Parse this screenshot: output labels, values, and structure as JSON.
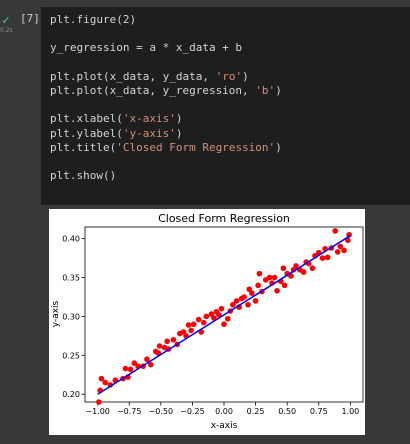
{
  "cell": {
    "execution_count": "[7]",
    "status_icon": "check-icon",
    "exec_time": "0.2s",
    "code_lines": [
      [
        "plt.figure(2)"
      ],
      [
        ""
      ],
      [
        "y_regression = a * x_data + b"
      ],
      [
        ""
      ],
      [
        "plt.plot(x_data, y_data, ",
        {
          "s": "'ro'"
        },
        ")"
      ],
      [
        "plt.plot(x_data, y_regression, ",
        {
          "s": "'b'"
        },
        ")"
      ],
      [
        ""
      ],
      [
        "plt.xlabel(",
        {
          "s": "'x-axis'"
        },
        ")"
      ],
      [
        "plt.ylabel(",
        {
          "s": "'y-axis'"
        },
        ")"
      ],
      [
        "plt.title(",
        {
          "s": "'Closed Form Regression'"
        },
        ")"
      ],
      [
        ""
      ],
      [
        "plt.show()"
      ]
    ]
  },
  "colors": {
    "background": "#383838",
    "cell_bg": "#1e1e1e",
    "code_text": "#d4d4d4",
    "string": "#ce9178",
    "points": "#ff0000",
    "line": "#0000ff"
  },
  "chart_data": {
    "type": "scatter",
    "title": "Closed Form Regression",
    "xlabel": "x-axis",
    "ylabel": "y-axis",
    "xlim": [
      -1.1,
      1.1
    ],
    "ylim": [
      0.19,
      0.415
    ],
    "xticks": [
      -1.0,
      -0.75,
      -0.5,
      -0.25,
      0.0,
      0.25,
      0.5,
      0.75,
      1.0
    ],
    "xtick_labels": [
      "−1.00",
      "−0.75",
      "−0.50",
      "−0.25",
      "0.00",
      "0.25",
      "0.50",
      "0.75",
      "1.00"
    ],
    "yticks": [
      0.2,
      0.25,
      0.3,
      0.35,
      0.4
    ],
    "ytick_labels": [
      "0.20",
      "0.25",
      "0.30",
      "0.35",
      "0.40"
    ],
    "grid": false,
    "series": [
      {
        "style": "ro",
        "x": [
          -0.99,
          -0.98,
          -0.97,
          -0.94,
          -0.9,
          -0.86,
          -0.8,
          -0.78,
          -0.76,
          -0.74,
          -0.71,
          -0.68,
          -0.64,
          -0.61,
          -0.58,
          -0.54,
          -0.52,
          -0.51,
          -0.47,
          -0.45,
          -0.44,
          -0.4,
          -0.37,
          -0.35,
          -0.32,
          -0.3,
          -0.28,
          -0.26,
          -0.24,
          -0.2,
          -0.18,
          -0.16,
          -0.14,
          -0.1,
          -0.08,
          -0.06,
          -0.04,
          -0.02,
          0.0,
          0.03,
          0.05,
          0.07,
          0.1,
          0.12,
          0.14,
          0.16,
          0.19,
          0.2,
          0.22,
          0.25,
          0.27,
          0.28,
          0.3,
          0.33,
          0.36,
          0.38,
          0.4,
          0.42,
          0.45,
          0.47,
          0.48,
          0.5,
          0.53,
          0.55,
          0.57,
          0.6,
          0.63,
          0.65,
          0.67,
          0.7,
          0.72,
          0.75,
          0.78,
          0.8,
          0.82,
          0.85,
          0.88,
          0.9,
          0.92,
          0.95,
          0.98,
          0.99
        ],
        "y": [
          0.19,
          0.205,
          0.22,
          0.215,
          0.212,
          0.218,
          0.22,
          0.233,
          0.222,
          0.232,
          0.24,
          0.236,
          0.236,
          0.245,
          0.238,
          0.255,
          0.253,
          0.262,
          0.26,
          0.268,
          0.258,
          0.27,
          0.264,
          0.278,
          0.28,
          0.275,
          0.289,
          0.282,
          0.29,
          0.296,
          0.28,
          0.292,
          0.3,
          0.303,
          0.298,
          0.306,
          0.302,
          0.31,
          0.29,
          0.297,
          0.307,
          0.315,
          0.32,
          0.312,
          0.323,
          0.325,
          0.315,
          0.335,
          0.33,
          0.32,
          0.34,
          0.355,
          0.332,
          0.347,
          0.35,
          0.343,
          0.35,
          0.333,
          0.345,
          0.362,
          0.34,
          0.355,
          0.352,
          0.36,
          0.365,
          0.36,
          0.357,
          0.37,
          0.368,
          0.362,
          0.378,
          0.382,
          0.375,
          0.387,
          0.376,
          0.388,
          0.41,
          0.383,
          0.39,
          0.385,
          0.398,
          0.405
        ]
      },
      {
        "style": "b",
        "x": [
          -1.0,
          1.0
        ],
        "y": [
          0.2,
          0.404
        ]
      }
    ]
  }
}
